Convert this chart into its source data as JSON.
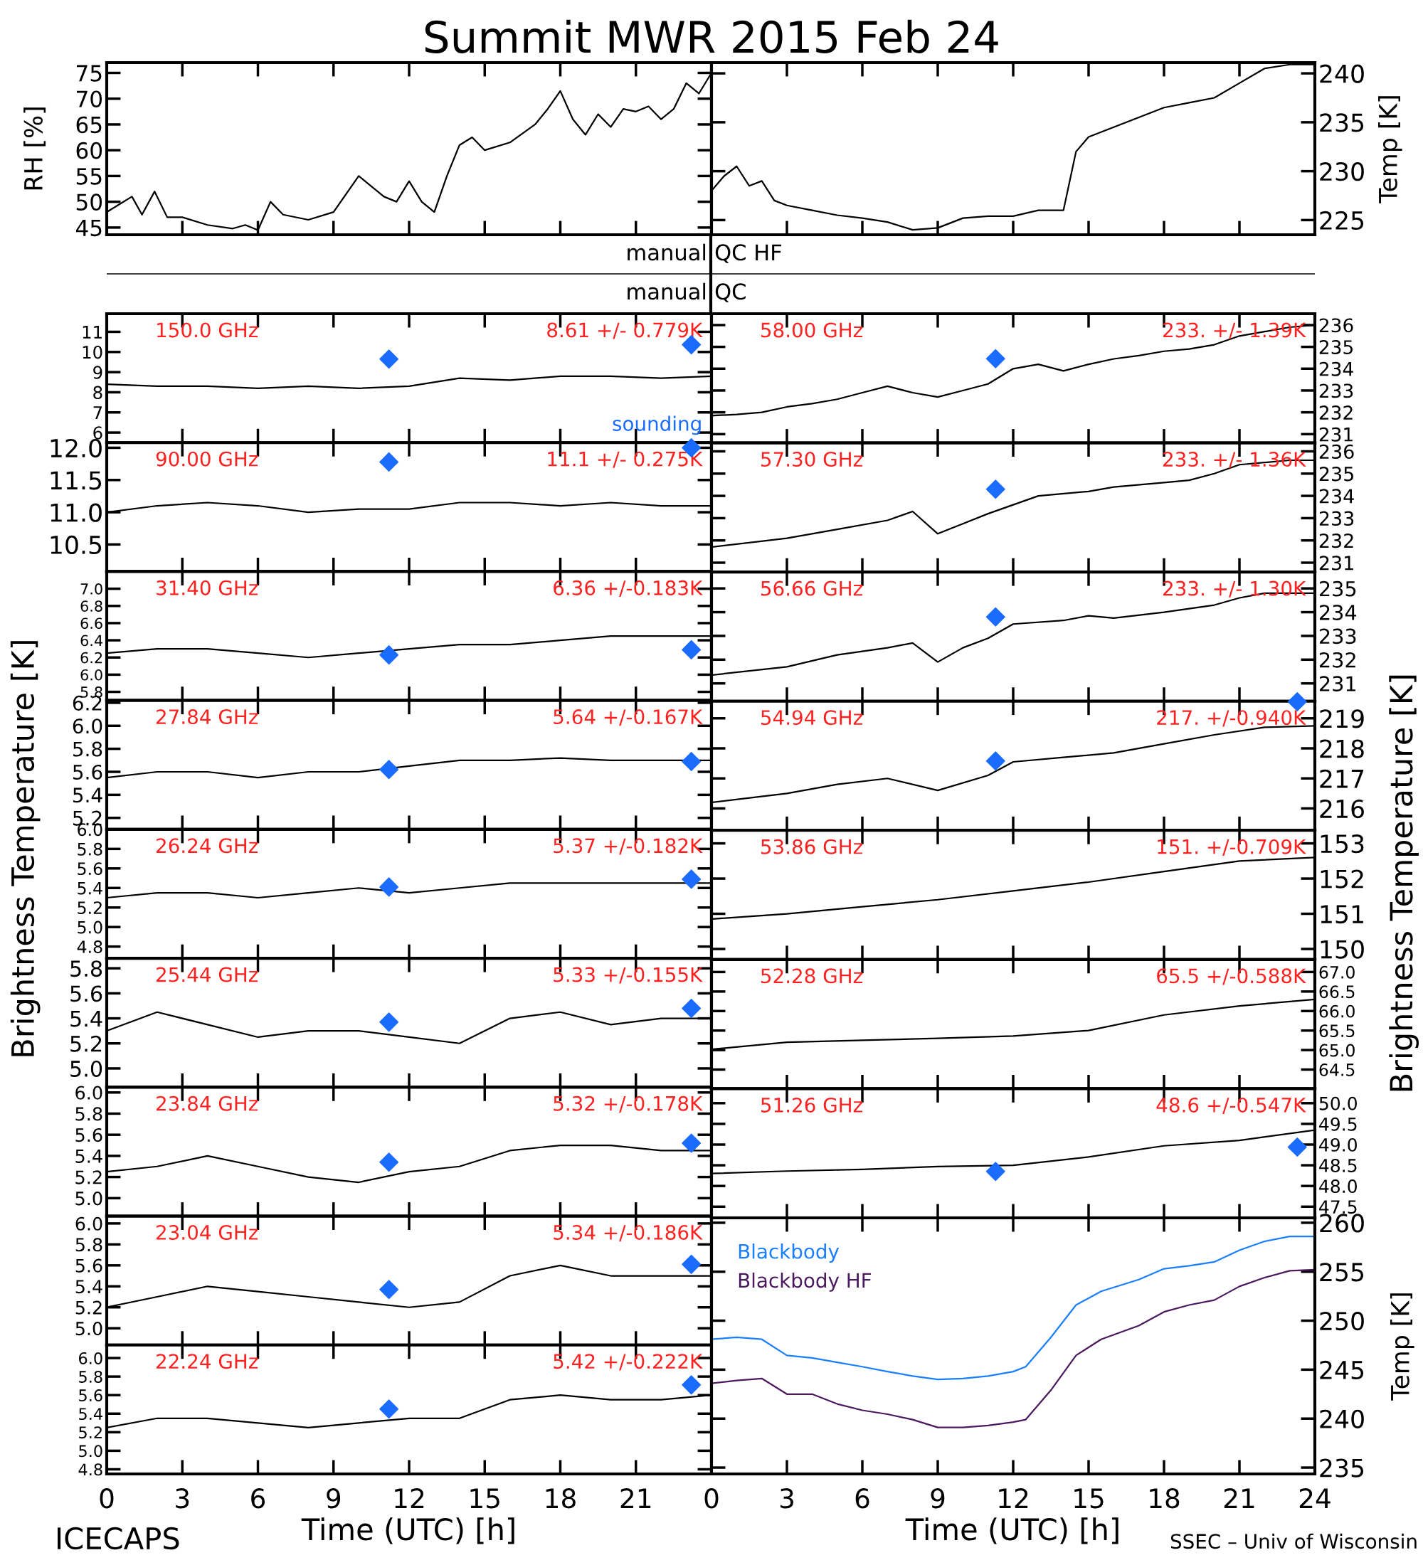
{
  "chart_data": [
    {
      "type": "line",
      "title": "Summit MWR 2015 Feb 24",
      "ylabel": "RH [%]",
      "tick_labels": "y",
      "xlim": [
        0,
        24
      ],
      "xticks": [
        0,
        3,
        6,
        9,
        12,
        15,
        18,
        21,
        24
      ],
      "ylim": [
        43.6,
        77
      ],
      "yticks": [
        45,
        50,
        55,
        60,
        65,
        70,
        75
      ],
      "x": [
        0,
        1,
        1.4,
        1.9,
        2.4,
        3,
        4,
        5,
        5.5,
        6,
        6.5,
        7,
        8,
        9,
        10,
        11,
        11.5,
        12,
        12.5,
        13,
        13.5,
        14,
        14.5,
        15,
        16,
        17,
        17.5,
        18,
        18.5,
        19,
        19.5,
        20,
        20.5,
        21,
        21.5,
        22,
        22.5,
        23,
        23.5,
        24
      ],
      "series": [
        {
          "color": "#000000",
          "values": [
            48,
            51,
            47.5,
            52,
            47,
            47,
            45.5,
            44.8,
            45.5,
            44.5,
            50,
            47.5,
            46.5,
            48,
            55,
            51,
            50,
            54,
            50,
            48,
            55,
            61,
            62.5,
            60,
            61.5,
            65,
            68,
            71.5,
            66,
            63,
            67,
            64.5,
            68,
            67.5,
            68.5,
            66,
            68,
            73,
            71,
            75
          ]
        }
      ]
    },
    {
      "type": "line",
      "ylabel": "Temp [K]",
      "tick_labels": "y",
      "xlim": [
        0,
        24
      ],
      "xticks": [
        0,
        3,
        6,
        9,
        12,
        15,
        18,
        21,
        24
      ],
      "ylim": [
        223.5,
        241.1
      ],
      "yticks": [
        225,
        230,
        235,
        240
      ],
      "x": [
        0,
        0.5,
        1,
        1.5,
        2,
        2.5,
        3,
        4,
        5,
        6,
        7,
        8,
        9,
        10,
        11,
        12,
        13,
        14,
        14.5,
        15,
        16,
        17,
        18,
        19,
        20,
        21,
        22,
        23,
        24
      ],
      "series": [
        {
          "color": "#000000",
          "values": [
            228,
            229.5,
            230.5,
            228.5,
            229,
            227,
            226.5,
            226,
            225.5,
            225.2,
            224.8,
            224,
            224.2,
            225.2,
            225.4,
            225.4,
            226,
            226,
            232,
            233.5,
            234.5,
            235.5,
            236.5,
            237,
            237.5,
            239,
            240.5,
            240.9,
            240.9
          ]
        }
      ]
    },
    {
      "type": "other",
      "annotations": [
        "manual",
        "QC HF",
        "manual",
        "QC"
      ]
    },
    {
      "type": "line",
      "tick_labels": "y",
      "xlim": [
        0,
        24
      ],
      "xticks": [
        0,
        3,
        6,
        9,
        12,
        15,
        18,
        21,
        24
      ],
      "ylim": [
        5.5,
        11.9
      ],
      "yticks": [
        6,
        7,
        8,
        9,
        10,
        11
      ],
      "annotations": [
        "150.0 GHz",
        "8.61 +/- 0.779K"
      ],
      "x": [
        0,
        2,
        4,
        6,
        8,
        10,
        12,
        14,
        16,
        18,
        20,
        22,
        24
      ],
      "series": [
        {
          "color": "#000000",
          "values": [
            8.4,
            8.3,
            8.3,
            8.2,
            8.3,
            8.2,
            8.3,
            8.7,
            8.6,
            8.8,
            8.8,
            8.7,
            8.8
          ]
        },
        {
          "type": "scatter",
          "name": "sounding",
          "marker": "diamond",
          "color": "#1a6cff",
          "x": [
            11.2,
            23.2
          ],
          "values": [
            9.65,
            10.36
          ]
        }
      ]
    },
    {
      "type": "line",
      "tick_labels": "y",
      "xlim": [
        0,
        24
      ],
      "xticks": [
        0,
        3,
        6,
        9,
        12,
        15,
        18,
        21,
        24
      ],
      "ylim": [
        10.08,
        12.08
      ],
      "yticks": [
        10.5,
        {
          "value": 11,
          "label": "11.0"
        },
        11.5,
        {
          "value": 12,
          "label": "12.0"
        }
      ],
      "annotations": [
        "90.00 GHz",
        "11.1 +/- 0.275K"
      ],
      "x": [
        0,
        2,
        4,
        6,
        8,
        10,
        12,
        14,
        16,
        18,
        20,
        22,
        24
      ],
      "series": [
        {
          "color": "#000000",
          "values": [
            11.0,
            11.1,
            11.15,
            11.1,
            11.0,
            11.05,
            11.05,
            11.15,
            11.15,
            11.1,
            11.15,
            11.1,
            11.1
          ]
        },
        {
          "type": "scatter",
          "marker": "diamond",
          "color": "#1a6cff",
          "x": [
            11.2,
            23.2
          ],
          "values": [
            11.78,
            12.0
          ]
        }
      ]
    },
    {
      "type": "line",
      "tick_labels": "y",
      "xlim": [
        0,
        24
      ],
      "xticks": [
        0,
        3,
        6,
        9,
        12,
        15,
        18,
        21,
        24
      ],
      "ylim": [
        5.7,
        7.2
      ],
      "yticks": [
        5.8,
        {
          "value": 6,
          "label": "6.0"
        },
        6.2,
        6.4,
        6.6,
        6.8,
        {
          "value": 7,
          "label": "7.0"
        }
      ],
      "annotations": [
        "31.40 GHz",
        "6.36 +/-0.183K"
      ],
      "x": [
        0,
        2,
        4,
        6,
        8,
        10,
        12,
        14,
        16,
        18,
        20,
        22,
        24
      ],
      "series": [
        {
          "color": "#000000",
          "values": [
            6.25,
            6.3,
            6.3,
            6.25,
            6.2,
            6.25,
            6.3,
            6.35,
            6.35,
            6.4,
            6.45,
            6.45,
            6.45
          ]
        },
        {
          "type": "scatter",
          "marker": "diamond",
          "color": "#1a6cff",
          "x": [
            11.2,
            23.2
          ],
          "values": [
            6.23,
            6.29
          ]
        }
      ]
    },
    {
      "type": "line",
      "tick_labels": "y",
      "xlim": [
        0,
        24
      ],
      "xticks": [
        0,
        3,
        6,
        9,
        12,
        15,
        18,
        21,
        24
      ],
      "ylim": [
        5.1,
        6.22
      ],
      "yticks": [
        5.2,
        5.4,
        5.6,
        5.8,
        {
          "value": 6,
          "label": "6.0"
        },
        6.2
      ],
      "annotations": [
        "27.84 GHz",
        "5.64 +/-0.167K"
      ],
      "x": [
        0,
        2,
        4,
        6,
        8,
        10,
        12,
        14,
        16,
        18,
        20,
        22,
        24
      ],
      "series": [
        {
          "color": "#000000",
          "values": [
            5.55,
            5.6,
            5.6,
            5.55,
            5.6,
            5.6,
            5.65,
            5.7,
            5.7,
            5.72,
            5.7,
            5.7,
            5.7
          ]
        },
        {
          "type": "scatter",
          "marker": "diamond",
          "color": "#1a6cff",
          "x": [
            11.2,
            23.2
          ],
          "values": [
            5.62,
            5.69
          ]
        }
      ]
    },
    {
      "type": "line",
      "ylabel": "Brightness Temperature [K]",
      "tick_labels": "y",
      "xlim": [
        0,
        24
      ],
      "xticks": [
        0,
        3,
        6,
        9,
        12,
        15,
        18,
        21,
        24
      ],
      "ylim": [
        4.68,
        6.0
      ],
      "yticks": [
        4.8,
        {
          "value": 5,
          "label": "5.0"
        },
        5.2,
        5.4,
        5.6,
        5.8,
        {
          "value": 6,
          "label": "6.0"
        }
      ],
      "annotations": [
        "26.24 GHz",
        "5.37 +/-0.182K"
      ],
      "x": [
        0,
        2,
        4,
        6,
        8,
        10,
        12,
        14,
        16,
        18,
        20,
        22,
        24
      ],
      "series": [
        {
          "color": "#000000",
          "values": [
            5.3,
            5.35,
            5.35,
            5.3,
            5.35,
            5.4,
            5.35,
            5.4,
            5.45,
            5.45,
            5.45,
            5.45,
            5.45
          ]
        },
        {
          "type": "scatter",
          "marker": "diamond",
          "color": "#1a6cff",
          "x": [
            11.2,
            23.2
          ],
          "values": [
            5.41,
            5.49
          ]
        }
      ]
    },
    {
      "type": "line",
      "tick_labels": "y",
      "xlim": [
        0,
        24
      ],
      "xticks": [
        0,
        3,
        6,
        9,
        12,
        15,
        18,
        21,
        24
      ],
      "ylim": [
        4.85,
        5.88
      ],
      "yticks": [
        {
          "value": 5,
          "label": "5.0"
        },
        5.2,
        5.4,
        5.6,
        5.8
      ],
      "annotations": [
        "25.44 GHz",
        "5.33 +/-0.155K"
      ],
      "x": [
        0,
        2,
        4,
        6,
        8,
        10,
        12,
        14,
        16,
        18,
        20,
        22,
        24
      ],
      "series": [
        {
          "color": "#000000",
          "values": [
            5.3,
            5.45,
            5.35,
            5.25,
            5.3,
            5.3,
            5.25,
            5.2,
            5.4,
            5.45,
            5.35,
            5.4,
            5.4
          ]
        },
        {
          "type": "scatter",
          "marker": "diamond",
          "color": "#1a6cff",
          "x": [
            11.2,
            23.2
          ],
          "values": [
            5.37,
            5.48
          ]
        }
      ]
    },
    {
      "type": "line",
      "tick_labels": "y",
      "xlim": [
        0,
        24
      ],
      "xticks": [
        0,
        3,
        6,
        9,
        12,
        15,
        18,
        21,
        24
      ],
      "ylim": [
        4.83,
        6.05
      ],
      "yticks": [
        {
          "value": 5,
          "label": "5.0"
        },
        5.2,
        5.4,
        5.6,
        5.8,
        {
          "value": 6,
          "label": "6.0"
        }
      ],
      "annotations": [
        "23.84 GHz",
        "5.32 +/-0.178K"
      ],
      "x": [
        0,
        2,
        4,
        6,
        8,
        10,
        12,
        14,
        16,
        18,
        20,
        22,
        24
      ],
      "series": [
        {
          "color": "#000000",
          "values": [
            5.25,
            5.3,
            5.4,
            5.3,
            5.2,
            5.15,
            5.25,
            5.3,
            5.45,
            5.5,
            5.5,
            5.45,
            5.45
          ]
        },
        {
          "type": "scatter",
          "marker": "diamond",
          "color": "#1a6cff",
          "x": [
            11.2,
            23.2
          ],
          "values": [
            5.34,
            5.52
          ]
        }
      ]
    },
    {
      "type": "line",
      "tick_labels": "y",
      "xlim": [
        0,
        24
      ],
      "xticks": [
        0,
        3,
        6,
        9,
        12,
        15,
        18,
        21,
        24
      ],
      "ylim": [
        4.84,
        6.07
      ],
      "yticks": [
        {
          "value": 5,
          "label": "5.0"
        },
        5.2,
        5.4,
        5.6,
        5.8,
        {
          "value": 6,
          "label": "6.0"
        }
      ],
      "annotations": [
        "23.04 GHz",
        "5.34 +/-0.186K"
      ],
      "x": [
        0,
        2,
        4,
        6,
        8,
        10,
        12,
        14,
        16,
        18,
        20,
        22,
        24
      ],
      "series": [
        {
          "color": "#000000",
          "values": [
            5.2,
            5.3,
            5.4,
            5.35,
            5.3,
            5.25,
            5.2,
            5.25,
            5.5,
            5.6,
            5.5,
            5.5,
            5.5
          ]
        },
        {
          "type": "scatter",
          "marker": "diamond",
          "color": "#1a6cff",
          "x": [
            11.2,
            23.2
          ],
          "values": [
            5.37,
            5.61
          ]
        }
      ]
    },
    {
      "type": "line",
      "xlabel": "Time (UTC) [h]",
      "xlim": [
        0,
        24
      ],
      "xticks": [
        0,
        3,
        6,
        9,
        12,
        15,
        18,
        21,
        {
          "value": 24,
          "label": null
        }
      ],
      "ylim": [
        4.75,
        6.14
      ],
      "yticks": [
        4.8,
        {
          "value": 5,
          "label": "5.0"
        },
        5.2,
        5.4,
        5.6,
        5.8,
        {
          "value": 6,
          "label": "6.0"
        }
      ],
      "annotations": [
        "22.24 GHz",
        "5.42 +/-0.222K",
        "ICECAPS"
      ],
      "x": [
        0,
        2,
        4,
        6,
        8,
        10,
        12,
        14,
        16,
        18,
        20,
        22,
        24
      ],
      "series": [
        {
          "color": "#000000",
          "values": [
            5.25,
            5.35,
            5.35,
            5.3,
            5.25,
            5.3,
            5.35,
            5.35,
            5.55,
            5.6,
            5.55,
            5.55,
            5.6
          ]
        },
        {
          "type": "scatter",
          "marker": "diamond",
          "color": "#1a6cff",
          "x": [
            11.2,
            23.2
          ],
          "values": [
            5.45,
            5.71
          ]
        }
      ]
    },
    {
      "type": "line",
      "tick_labels": "y",
      "xlim": [
        0,
        24
      ],
      "xticks": [
        0,
        3,
        6,
        9,
        12,
        15,
        18,
        21,
        24
      ],
      "ylim": [
        230.6,
        236.52
      ],
      "yticks": [
        231,
        232,
        233,
        234,
        235,
        236
      ],
      "annotations": [
        "58.00 GHz",
        "233. +/- 1.39K"
      ],
      "x": [
        0,
        1,
        2,
        3,
        4,
        5,
        6,
        7,
        8,
        9,
        10,
        11,
        12,
        13,
        14,
        15,
        16,
        17,
        18,
        19,
        20,
        21,
        22,
        23,
        24
      ],
      "series": [
        {
          "color": "#000000",
          "values": [
            231.85,
            231.9,
            232.0,
            232.25,
            232.4,
            232.6,
            232.9,
            233.2,
            232.9,
            232.7,
            233.0,
            233.3,
            234.0,
            234.2,
            233.9,
            234.2,
            234.45,
            234.6,
            234.8,
            234.9,
            235.1,
            235.5,
            235.7,
            235.9,
            236.0
          ]
        },
        {
          "type": "scatter",
          "marker": "diamond",
          "color": "#1a6cff",
          "x": [
            11.3
          ],
          "values": [
            234.46
          ]
        }
      ]
    },
    {
      "type": "line",
      "tick_labels": "y",
      "xlim": [
        0,
        24
      ],
      "xticks": [
        0,
        3,
        6,
        9,
        12,
        15,
        18,
        21,
        24
      ],
      "ylim": [
        230.58,
        236.38
      ],
      "yticks": [
        231,
        232,
        233,
        234,
        235,
        236
      ],
      "annotations": [
        "57.30 GHz",
        "233. +/- 1.36K"
      ],
      "x": [
        0,
        3,
        5,
        7,
        8,
        9,
        10,
        11,
        12,
        13,
        15,
        16,
        18,
        19,
        20,
        21,
        23,
        24
      ],
      "series": [
        {
          "color": "#000000",
          "values": [
            231.7,
            232.1,
            232.5,
            232.9,
            233.3,
            232.3,
            232.75,
            233.2,
            233.6,
            234.0,
            234.2,
            234.4,
            234.6,
            234.7,
            235.0,
            235.4,
            235.6,
            235.6
          ]
        },
        {
          "type": "scatter",
          "marker": "diamond",
          "color": "#1a6cff",
          "x": [
            11.3
          ],
          "values": [
            234.3
          ]
        }
      ]
    },
    {
      "type": "line",
      "tick_labels": "y",
      "xlim": [
        0,
        24
      ],
      "xticks": [
        0,
        3,
        6,
        9,
        12,
        15,
        18,
        21,
        24
      ],
      "ylim": [
        230.25,
        235.69
      ],
      "yticks": [
        231,
        232,
        233,
        234,
        235
      ],
      "annotations": [
        "56.66 GHz",
        "233. +/- 1.30K"
      ],
      "x": [
        0,
        3,
        5,
        7,
        8,
        9,
        10,
        11,
        12,
        14,
        15,
        16,
        18,
        20,
        21,
        22,
        24
      ],
      "series": [
        {
          "color": "#000000",
          "values": [
            231.35,
            231.7,
            232.2,
            232.5,
            232.7,
            231.9,
            232.5,
            232.9,
            233.5,
            233.65,
            233.85,
            233.75,
            234.0,
            234.3,
            234.6,
            234.8,
            234.8
          ]
        },
        {
          "type": "scatter",
          "marker": "diamond",
          "color": "#1a6cff",
          "x": [
            11.3
          ],
          "values": [
            233.8
          ]
        }
      ]
    },
    {
      "type": "line",
      "tick_labels": "y",
      "xlim": [
        0,
        24
      ],
      "xticks": [
        0,
        3,
        6,
        9,
        12,
        15,
        18,
        21,
        24
      ],
      "ylim": [
        215.27,
        219.57
      ],
      "yticks": [
        216,
        217,
        218,
        219
      ],
      "annotations": [
        "54.94 GHz",
        "217. +/-0.940K"
      ],
      "x": [
        0,
        3,
        5,
        7,
        9,
        11,
        12,
        14,
        16,
        18,
        20,
        22,
        24
      ],
      "series": [
        {
          "color": "#000000",
          "values": [
            216.2,
            216.5,
            216.8,
            217.0,
            216.6,
            217.1,
            217.55,
            217.7,
            217.85,
            218.15,
            218.45,
            218.7,
            218.75
          ]
        },
        {
          "type": "scatter",
          "marker": "diamond",
          "color": "#1a6cff",
          "x": [
            11.3,
            23.3
          ],
          "values": [
            217.58,
            219.55
          ]
        }
      ]
    },
    {
      "type": "line",
      "ylabel": "Brightness Temperature [K]",
      "tick_labels": "y",
      "xlim": [
        0,
        24
      ],
      "xticks": [
        0,
        3,
        6,
        9,
        12,
        15,
        18,
        21,
        24
      ],
      "ylim": [
        149.7,
        153.37
      ],
      "yticks": [
        150,
        151,
        152,
        153
      ],
      "annotations": [
        "53.86 GHz",
        "151. +/-0.709K"
      ],
      "x": [
        0,
        3,
        6,
        9,
        12,
        15,
        18,
        21,
        24
      ],
      "series": [
        {
          "color": "#000000",
          "values": [
            150.85,
            151.0,
            151.2,
            151.4,
            151.65,
            151.9,
            152.2,
            152.5,
            152.6
          ]
        }
      ]
    },
    {
      "type": "line",
      "tick_labels": "y",
      "xlim": [
        0,
        24
      ],
      "xticks": [
        0,
        3,
        6,
        9,
        12,
        15,
        18,
        21,
        24
      ],
      "ylim": [
        64.01,
        67.32
      ],
      "yticks": [
        64.5,
        {
          "value": 65,
          "label": "65.0"
        },
        65.5,
        {
          "value": 66,
          "label": "66.0"
        },
        66.5,
        {
          "value": 67,
          "label": "67.0"
        }
      ],
      "annotations": [
        "52.28 GHz",
        "65.5 +/-0.588K"
      ],
      "x": [
        0,
        3,
        6,
        9,
        12,
        15,
        18,
        21,
        24
      ],
      "series": [
        {
          "color": "#000000",
          "values": [
            65.02,
            65.2,
            65.25,
            65.3,
            65.36,
            65.5,
            65.9,
            66.13,
            66.3
          ]
        }
      ]
    },
    {
      "type": "line",
      "tick_labels": "y",
      "xlim": [
        0,
        24
      ],
      "xticks": [
        0,
        3,
        6,
        9,
        12,
        15,
        18,
        21,
        24
      ],
      "ylim": [
        47.23,
        50.35
      ],
      "yticks": [
        47.5,
        {
          "value": 48,
          "label": "48.0"
        },
        48.5,
        {
          "value": 49,
          "label": "49.0"
        },
        49.5,
        {
          "value": 50,
          "label": "50.0"
        }
      ],
      "annotations": [
        "51.26 GHz",
        "48.6 +/-0.547K"
      ],
      "x": [
        0,
        3,
        6,
        9,
        12,
        15,
        18,
        21,
        24
      ],
      "series": [
        {
          "color": "#000000",
          "values": [
            48.3,
            48.36,
            48.4,
            48.47,
            48.5,
            48.7,
            48.97,
            49.1,
            49.35
          ]
        },
        {
          "type": "scatter",
          "marker": "diamond",
          "color": "#1a6cff",
          "x": [
            11.3,
            23.3
          ],
          "values": [
            48.35,
            48.94
          ]
        }
      ]
    },
    {
      "type": "line",
      "xlabel": "Time (UTC) [h]",
      "ylabel": "Temp [K]",
      "legend": "top left",
      "xlim": [
        0,
        24
      ],
      "xticks": [
        0,
        3,
        6,
        9,
        12,
        15,
        18,
        21,
        24
      ],
      "ylim": [
        234.35,
        260.5
      ],
      "yticks": [
        235,
        240,
        245,
        250,
        255,
        260
      ],
      "annotations": [
        "SSEC – Univ of Wisconsin"
      ],
      "x": [
        0,
        1,
        2,
        3,
        4,
        5,
        6,
        7,
        8,
        9,
        10,
        11,
        12,
        12.5,
        13.5,
        14.5,
        15.5,
        17,
        18,
        19,
        20,
        21,
        22,
        23,
        24
      ],
      "series": [
        {
          "name": "Blackbody",
          "color": "#1a7fff",
          "values": [
            248.1,
            248.3,
            248.1,
            246.45,
            246.2,
            245.75,
            245.3,
            244.8,
            244.35,
            244.0,
            244.1,
            244.35,
            244.8,
            245.3,
            248.3,
            251.6,
            253.0,
            254.2,
            255.3,
            255.6,
            256.0,
            257.2,
            258.1,
            258.6,
            258.6
          ]
        },
        {
          "name": "Blackbody HF",
          "color": "#4b1a5e",
          "values": [
            243.6,
            243.9,
            244.1,
            242.5,
            242.5,
            241.5,
            240.85,
            240.45,
            239.9,
            239.1,
            239.1,
            239.3,
            239.65,
            239.9,
            242.9,
            246.45,
            248.1,
            249.5,
            250.9,
            251.6,
            252.1,
            253.5,
            254.4,
            255.1,
            255.2
          ]
        }
      ]
    }
  ]
}
